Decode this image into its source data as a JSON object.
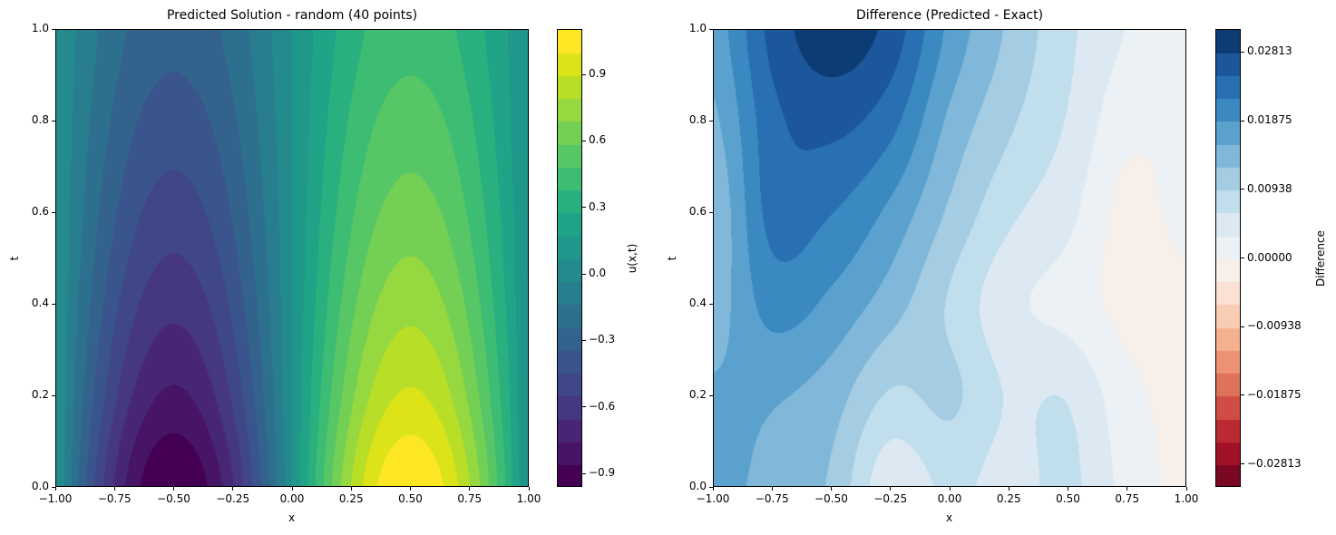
{
  "chart_data": [
    {
      "type": "heatmap",
      "subtype": "filled-contour",
      "title": "Predicted Solution - random (40 points)",
      "xlabel": "x",
      "ylabel": "t",
      "colorbar_label": "u(x,t)",
      "xlim": [
        -1,
        1
      ],
      "ylim": [
        0,
        1
      ],
      "x_ticks": [
        "−1.00",
        "−0.75",
        "−0.50",
        "−0.25",
        "0.00",
        "0.25",
        "0.50",
        "0.75",
        "1.00"
      ],
      "x_tick_values": [
        -1,
        -0.75,
        -0.5,
        -0.25,
        0,
        0.25,
        0.5,
        0.75,
        1
      ],
      "y_ticks": [
        "0.0",
        "0.2",
        "0.4",
        "0.6",
        "0.8",
        "1.0"
      ],
      "y_tick_values": [
        0,
        0.2,
        0.4,
        0.6,
        0.8,
        1
      ],
      "colormap": "viridis",
      "level_range": [
        -0.961,
        1.105
      ],
      "n_bands": 20,
      "colorbar_ticks": [
        "−0.9",
        "−0.6",
        "−0.3",
        "0.0",
        "0.3",
        "0.6",
        "0.9"
      ],
      "colorbar_tick_values": [
        -0.9,
        -0.6,
        -0.3,
        0,
        0.3,
        0.6,
        0.9
      ],
      "colors": [
        "#440154",
        "#471365",
        "#482475",
        "#463480",
        "#414487",
        "#3b528b",
        "#355f8d",
        "#2f6c8e",
        "#2a788e",
        "#25848e",
        "#21918c",
        "#1e9c89",
        "#22a884",
        "#2fb47c",
        "#44bf70",
        "#5ec962",
        "#7ad151",
        "#9bd93c",
        "#bddf26",
        "#dfe318",
        "#fde725"
      ],
      "grid_x": [
        -1,
        -0.9,
        -0.8,
        -0.7,
        -0.6,
        -0.5,
        -0.4,
        -0.3,
        -0.2,
        -0.1,
        0,
        0.1,
        0.2,
        0.3,
        0.4,
        0.5,
        0.6,
        0.7,
        0.8,
        0.9,
        1
      ],
      "grid_t": [
        0,
        0.2,
        0.4,
        0.6,
        0.8,
        1
      ],
      "z": [
        [
          0.07,
          -0.248,
          -0.536,
          -0.763,
          -0.91,
          -0.96,
          -0.91,
          -0.763,
          -0.536,
          -0.248,
          0.07,
          0.388,
          0.676,
          0.903,
          1.05,
          1.1,
          1.05,
          0.903,
          0.676,
          0.388,
          0.07
        ],
        [
          0.07,
          -0.191,
          -0.426,
          -0.613,
          -0.733,
          -0.774,
          -0.733,
          -0.613,
          -0.426,
          -0.191,
          0.07,
          0.331,
          0.566,
          0.753,
          0.873,
          0.914,
          0.873,
          0.753,
          0.566,
          0.331,
          0.07
        ],
        [
          0.07,
          -0.143,
          -0.336,
          -0.488,
          -0.586,
          -0.62,
          -0.586,
          -0.488,
          -0.336,
          -0.143,
          0.07,
          0.283,
          0.476,
          0.628,
          0.726,
          0.76,
          0.726,
          0.628,
          0.476,
          0.283,
          0.07
        ],
        [
          0.07,
          -0.105,
          -0.262,
          -0.387,
          -0.467,
          -0.495,
          -0.467,
          -0.387,
          -0.262,
          -0.105,
          0.07,
          0.245,
          0.402,
          0.527,
          0.607,
          0.635,
          0.607,
          0.527,
          0.402,
          0.245,
          0.07
        ],
        [
          0.07,
          -0.073,
          -0.202,
          -0.305,
          -0.37,
          -0.393,
          -0.37,
          -0.305,
          -0.202,
          -0.073,
          0.07,
          0.213,
          0.342,
          0.445,
          0.51,
          0.533,
          0.51,
          0.445,
          0.342,
          0.213,
          0.07
        ],
        [
          0.07,
          -0.047,
          -0.153,
          -0.237,
          -0.29,
          -0.309,
          -0.29,
          -0.237,
          -0.153,
          -0.047,
          0.07,
          0.187,
          0.293,
          0.377,
          0.43,
          0.449,
          0.43,
          0.377,
          0.293,
          0.187,
          0.07
        ]
      ]
    },
    {
      "type": "heatmap",
      "subtype": "filled-contour",
      "title": "Difference (Predicted - Exact)",
      "xlabel": "x",
      "ylabel": "t",
      "colorbar_label": "Difference",
      "xlim": [
        -1,
        1
      ],
      "ylim": [
        0,
        1
      ],
      "x_ticks": [
        "−1.00",
        "−0.75",
        "−0.50",
        "−0.25",
        "0.00",
        "0.25",
        "0.50",
        "0.75",
        "1.00"
      ],
      "x_tick_values": [
        -1,
        -0.75,
        -0.5,
        -0.25,
        0,
        0.25,
        0.5,
        0.75,
        1
      ],
      "y_ticks": [
        "0.0",
        "0.2",
        "0.4",
        "0.6",
        "0.8",
        "1.0"
      ],
      "y_tick_values": [
        0,
        0.2,
        0.4,
        0.6,
        0.8,
        1
      ],
      "colormap": "RdBu",
      "level_range": [
        -0.03126,
        0.03126
      ],
      "n_bands": 20,
      "colorbar_ticks": [
        "0.02813",
        "0.01875",
        "0.00938",
        "0.00000",
        "−0.00938",
        "−0.01875",
        "−0.02813"
      ],
      "colorbar_tick_values": [
        0.02813,
        0.01875,
        0.00938,
        0,
        -0.00938,
        -0.01875,
        -0.02813
      ],
      "band_colors": [
        "#7b0823",
        "#a11228",
        "#bb2a33",
        "#cf4d45",
        "#e0715a",
        "#ed9273",
        "#f5b090",
        "#f9ccb4",
        "#fbe1d4",
        "#f7efe9",
        "#ebf1f4",
        "#dce9f2",
        "#c1deec",
        "#a4cde3",
        "#81b8d9",
        "#5aa2cd",
        "#3a89c0",
        "#2870b1",
        "#1b579a",
        "#0c3c73"
      ],
      "grid_x": [
        -1,
        -0.75,
        -0.5,
        -0.25,
        0,
        0.25,
        0.5,
        0.75,
        1
      ],
      "grid_t": [
        0,
        0.2,
        0.4,
        0.6,
        0.8,
        1
      ],
      "z": [
        [
          0.016,
          0.015,
          0.012,
          0.004,
          0.007,
          0.005,
          0.007,
          0.002,
          -0.001
        ],
        [
          0.016,
          0.016,
          0.014,
          0.009,
          0.01,
          0.006,
          0.006,
          0.001,
          -0.001
        ],
        [
          0.014,
          0.02,
          0.018,
          0.014,
          0.009,
          0.004,
          0.002,
          -0.001,
          -0.001
        ],
        [
          0.013,
          0.023,
          0.022,
          0.018,
          0.012,
          0.007,
          0.004,
          -0.001,
          0.001
        ],
        [
          0.015,
          0.024,
          0.026,
          0.023,
          0.015,
          0.01,
          0.006,
          0.001,
          0.001
        ],
        [
          0.017,
          0.026,
          0.03,
          0.027,
          0.018,
          0.012,
          0.007,
          0.003,
          0.001
        ]
      ]
    }
  ]
}
